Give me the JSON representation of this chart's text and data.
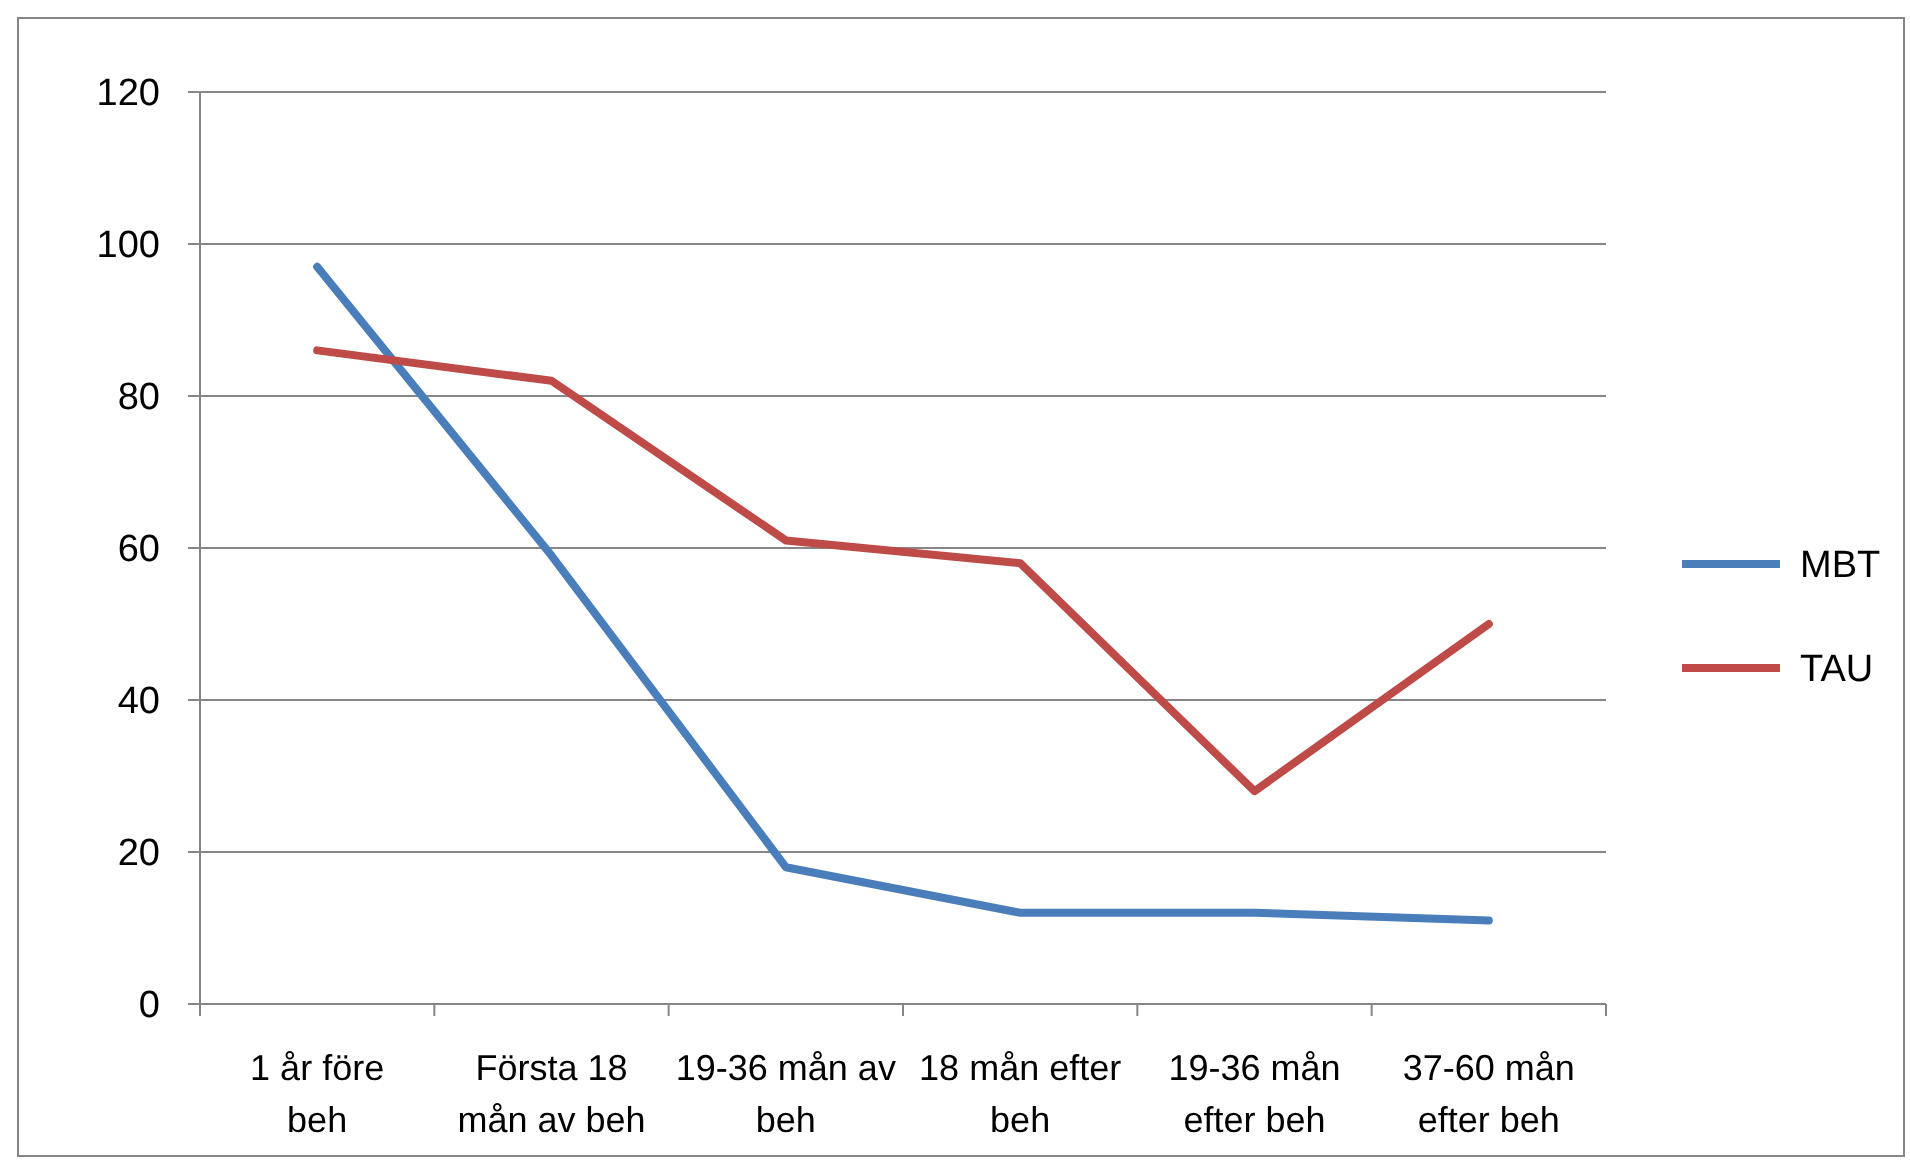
{
  "chart_data": {
    "type": "line",
    "categories": [
      "1 år före beh",
      "Första 18 mån av beh",
      "19-36 mån av beh",
      "18 mån efter beh",
      "19-36 mån efter beh",
      "37-60 mån efter beh"
    ],
    "series": [
      {
        "name": "MBT",
        "color": "#4a7ebb",
        "values": [
          97,
          59,
          18,
          12,
          12,
          11
        ]
      },
      {
        "name": "TAU",
        "color": "#be4b48",
        "values": [
          86,
          82,
          61,
          58,
          28,
          50
        ]
      }
    ],
    "ylim": [
      0,
      120
    ],
    "yticks": [
      0,
      20,
      40,
      60,
      80,
      100,
      120
    ],
    "grid": "y",
    "legend": "right",
    "marker": "none",
    "line_style": "solid"
  }
}
